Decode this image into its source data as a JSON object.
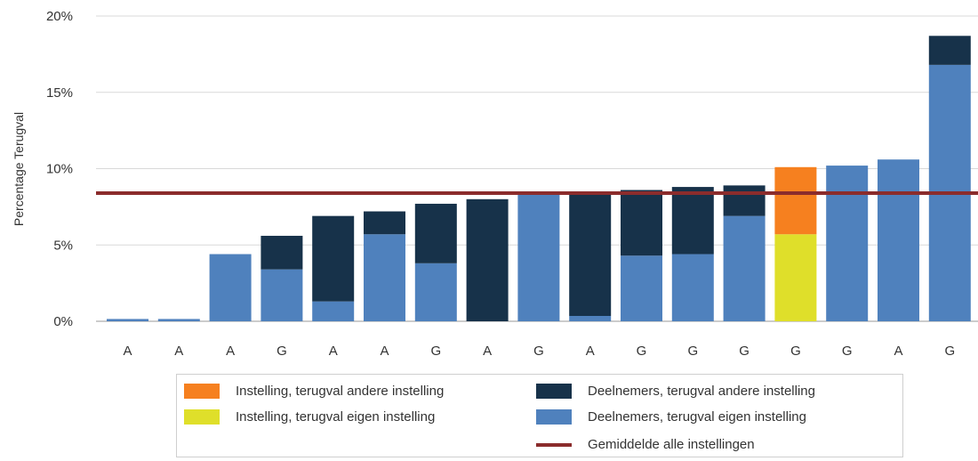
{
  "chart_data": {
    "type": "bar",
    "stacked": true,
    "ylabel": "Percentage Terugval",
    "xlabel": "",
    "ylim": [
      0,
      20
    ],
    "y_ticks": [
      "0%",
      "5%",
      "10%",
      "15%",
      "20%"
    ],
    "y_tick_values": [
      0,
      5,
      10,
      15,
      20
    ],
    "grid": true,
    "legend_placement": "bottom",
    "categories": [
      "A",
      "A",
      "A",
      "G",
      "A",
      "A",
      "G",
      "A",
      "G",
      "A",
      "G",
      "G",
      "G",
      "G",
      "G",
      "A",
      "G"
    ],
    "series": [
      {
        "name": "Deelnemers, terugval eigen instelling",
        "color": "#4f81bd",
        "values": [
          0.15,
          0.15,
          4.4,
          3.4,
          1.3,
          5.7,
          3.8,
          0,
          8.4,
          0.35,
          4.3,
          4.4,
          6.9,
          0,
          10.2,
          10.6,
          16.8
        ]
      },
      {
        "name": "Deelnemers, terugval andere instelling",
        "color": "#17324a",
        "values": [
          0,
          0,
          0,
          2.2,
          5.6,
          1.5,
          3.9,
          8.0,
          0,
          8.0,
          4.3,
          4.4,
          2.0,
          0,
          0,
          0,
          1.9
        ]
      },
      {
        "name": "Instelling, terugval eigen instelling",
        "color": "#dfdf2a",
        "values": [
          0,
          0,
          0,
          0,
          0,
          0,
          0,
          0,
          0,
          0,
          0,
          0,
          0,
          5.7,
          0,
          0,
          0
        ]
      },
      {
        "name": "Instelling, terugval andere instelling",
        "color": "#f6801f",
        "values": [
          0,
          0,
          0,
          0,
          0,
          0,
          0,
          0,
          0,
          0,
          0,
          0,
          0,
          4.4,
          0,
          0,
          0
        ]
      }
    ],
    "reference_line": {
      "name": "Gemiddelde alle instellingen",
      "value": 8.4,
      "color": "#8b2c2c"
    }
  },
  "legend": {
    "items": [
      {
        "label": "Instelling, terugval andere instelling",
        "color": "#f6801f",
        "kind": "box"
      },
      {
        "label": "Deelnemers, terugval andere instelling",
        "color": "#17324a",
        "kind": "box"
      },
      {
        "label": "Instelling, terugval eigen instelling",
        "color": "#dfdf2a",
        "kind": "box"
      },
      {
        "label": "Deelnemers, terugval eigen instelling",
        "color": "#4f81bd",
        "kind": "box"
      },
      {
        "label": "Gemiddelde alle instellingen",
        "color": "#8b2c2c",
        "kind": "line"
      }
    ]
  }
}
